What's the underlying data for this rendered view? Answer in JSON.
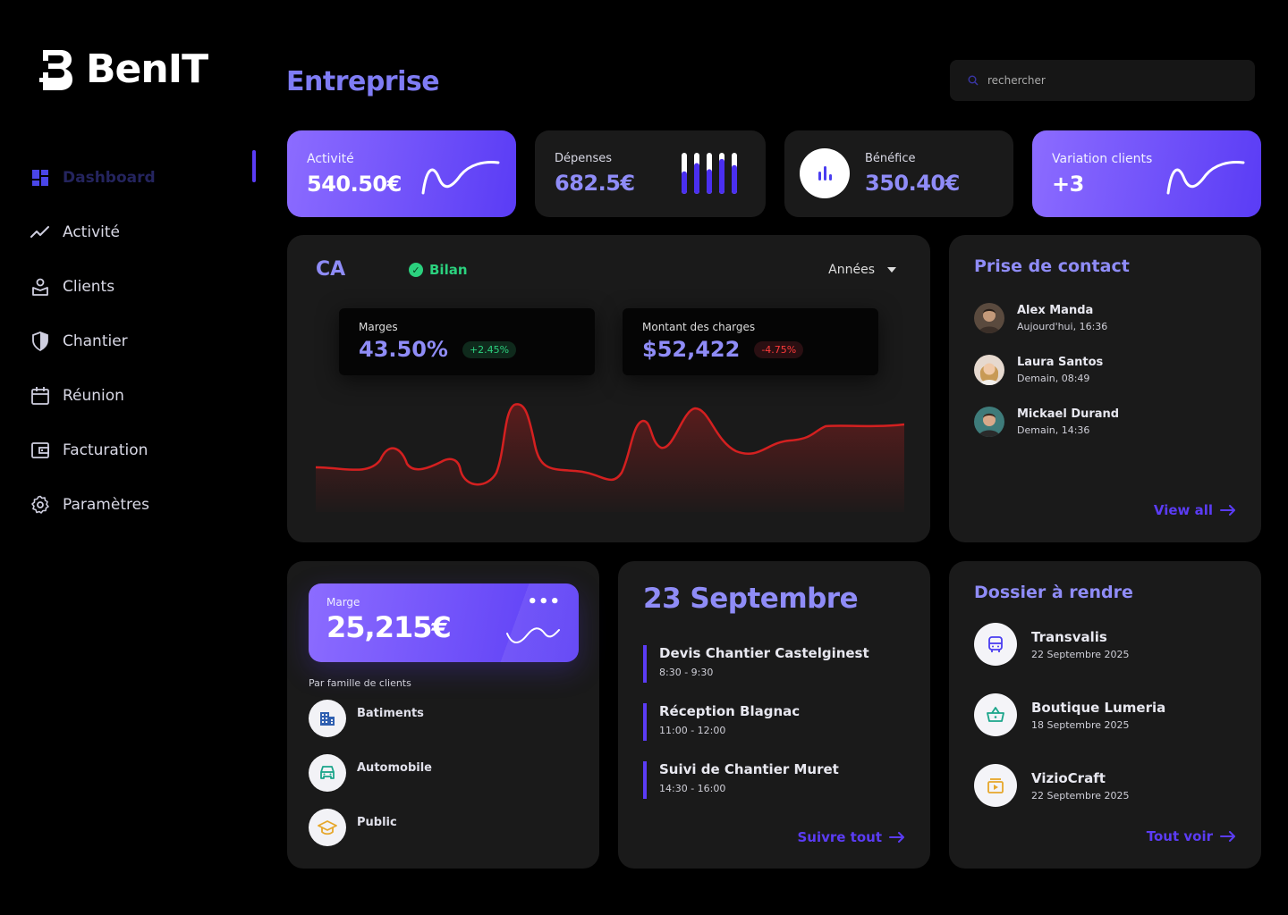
{
  "brand": {
    "name": "BenIT"
  },
  "sidebar": {
    "items": [
      {
        "label": "Dashboard",
        "icon": "grid-icon"
      },
      {
        "label": "Activité",
        "icon": "trend-icon"
      },
      {
        "label": "Clients",
        "icon": "clients-icon"
      },
      {
        "label": "Chantier",
        "icon": "shield-icon"
      },
      {
        "label": "Réunion",
        "icon": "calendar-icon"
      },
      {
        "label": "Facturation",
        "icon": "wallet-icon"
      },
      {
        "label": "Paramètres",
        "icon": "gear-icon"
      }
    ],
    "active_index": 0
  },
  "header": {
    "title": "Entreprise",
    "search_placeholder": "rechercher"
  },
  "stats": [
    {
      "label": "Activité",
      "value": "540.50€"
    },
    {
      "label": "Dépenses",
      "value": "682.5€",
      "bars": [
        0.55,
        0.75,
        0.6,
        0.85,
        0.7
      ]
    },
    {
      "label": "Bénéfice",
      "value": "350.40€"
    },
    {
      "label": "Variation clients",
      "value": "+3"
    }
  ],
  "ca": {
    "title": "CA",
    "badge": "Bilan",
    "period": "Années",
    "marges": {
      "label": "Marges",
      "value": "43.50%",
      "change": "+2.45%"
    },
    "charges": {
      "label": "Montant des charges",
      "value": "$52,422",
      "change": "-4.75%"
    }
  },
  "contacts": {
    "title": "Prise de contact",
    "items": [
      {
        "name": "Alex Manda",
        "time": "Aujourd'hui, 16:36"
      },
      {
        "name": "Laura Santos",
        "time": "Demain, 08:49"
      },
      {
        "name": "Mickael Durand",
        "time": "Demain, 14:36"
      }
    ],
    "link": "View all"
  },
  "marge": {
    "label": "Marge",
    "value": "25,215€",
    "subtitle": "Par famille de clients",
    "families": [
      {
        "name": "Batiments",
        "icon": "building-icon"
      },
      {
        "name": "Automobile",
        "icon": "car-icon"
      },
      {
        "name": "Public",
        "icon": "graduation-icon"
      }
    ]
  },
  "agenda": {
    "date": "23 Septembre",
    "events": [
      {
        "name": "Devis Chantier Castelginest",
        "time": "8:30 - 9:30"
      },
      {
        "name": "Réception Blagnac",
        "time": "11:00 - 12:00"
      },
      {
        "name": "Suivi de Chantier Muret",
        "time": "14:30  - 16:00"
      }
    ],
    "link": "Suivre tout"
  },
  "dossiers": {
    "title": "Dossier à rendre",
    "items": [
      {
        "name": "Transvalis",
        "date": "22 Septembre 2025",
        "icon": "bus-icon"
      },
      {
        "name": "Boutique Lumeria",
        "date": "18 Septembre 2025",
        "icon": "basket-icon"
      },
      {
        "name": "VizioCraft",
        "date": "22 Septembre 2025",
        "icon": "video-icon"
      }
    ],
    "link": "Tout voir"
  },
  "colors": {
    "accent": "#5b3cf5",
    "accent_light": "#8f8cf7",
    "positive": "#2bd17e",
    "negative": "#ff3a3a",
    "chart_line": "#d42020"
  }
}
